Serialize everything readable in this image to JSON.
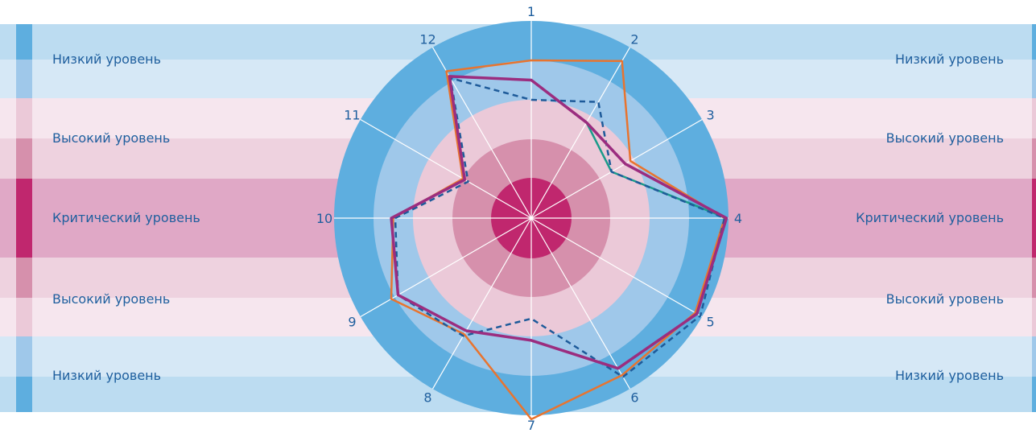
{
  "chart_data": {
    "type": "radar",
    "axes": [
      "1",
      "2",
      "3",
      "4",
      "5",
      "6",
      "7",
      "8",
      "9",
      "10",
      "11",
      "12"
    ],
    "rings": [
      {
        "level": "critical",
        "color": "#c0276e"
      },
      {
        "level": "high-inner",
        "color": "#d690ac"
      },
      {
        "level": "high-outer",
        "color": "#ebc9d8"
      },
      {
        "level": "low-inner",
        "color": "#9fc8ea"
      },
      {
        "level": "low-outer",
        "color": "#5eaedf"
      }
    ],
    "series": [
      {
        "color": "#e8742f",
        "style": "solid",
        "values": [
          0.8,
          0.92,
          0.58,
          0.98,
          0.96,
          0.92,
          1.02,
          0.68,
          0.82,
          0.7,
          0.4,
          0.86
        ]
      },
      {
        "color": "#1a9b8a",
        "style": "solid",
        "values": [
          0.7,
          0.56,
          0.47,
          0.99,
          0.97,
          0.88,
          0.62,
          0.66,
          0.78,
          0.71,
          0.39,
          0.83
        ]
      },
      {
        "color": "#1e5b9a",
        "style": "dashed",
        "values": [
          0.6,
          0.68,
          0.47,
          0.98,
          0.99,
          0.93,
          0.51,
          0.69,
          0.78,
          0.69,
          0.37,
          0.82
        ]
      },
      {
        "color": "#9b2d7f",
        "style": "solid",
        "values": [
          0.7,
          0.56,
          0.55,
          0.99,
          0.97,
          0.88,
          0.62,
          0.66,
          0.78,
          0.71,
          0.39,
          0.83
        ]
      }
    ],
    "level_labels": {
      "low": "Низкий уровень",
      "high": "Высокий уровень",
      "critical": "Критический уровень"
    }
  },
  "band_colors": {
    "low_light": "#d6e8f6",
    "low_mid": "#bcdcf1",
    "low_stripe": "#5eaedf",
    "low_stripe_light": "#9fc8ea",
    "high_light": "#f6e6ee",
    "high_mid": "#eed2df",
    "high_stripe": "#d690ac",
    "high_stripe_light": "#ebc9d8",
    "critical_bg": "#e0a8c6",
    "critical_stripe": "#c0276e"
  }
}
